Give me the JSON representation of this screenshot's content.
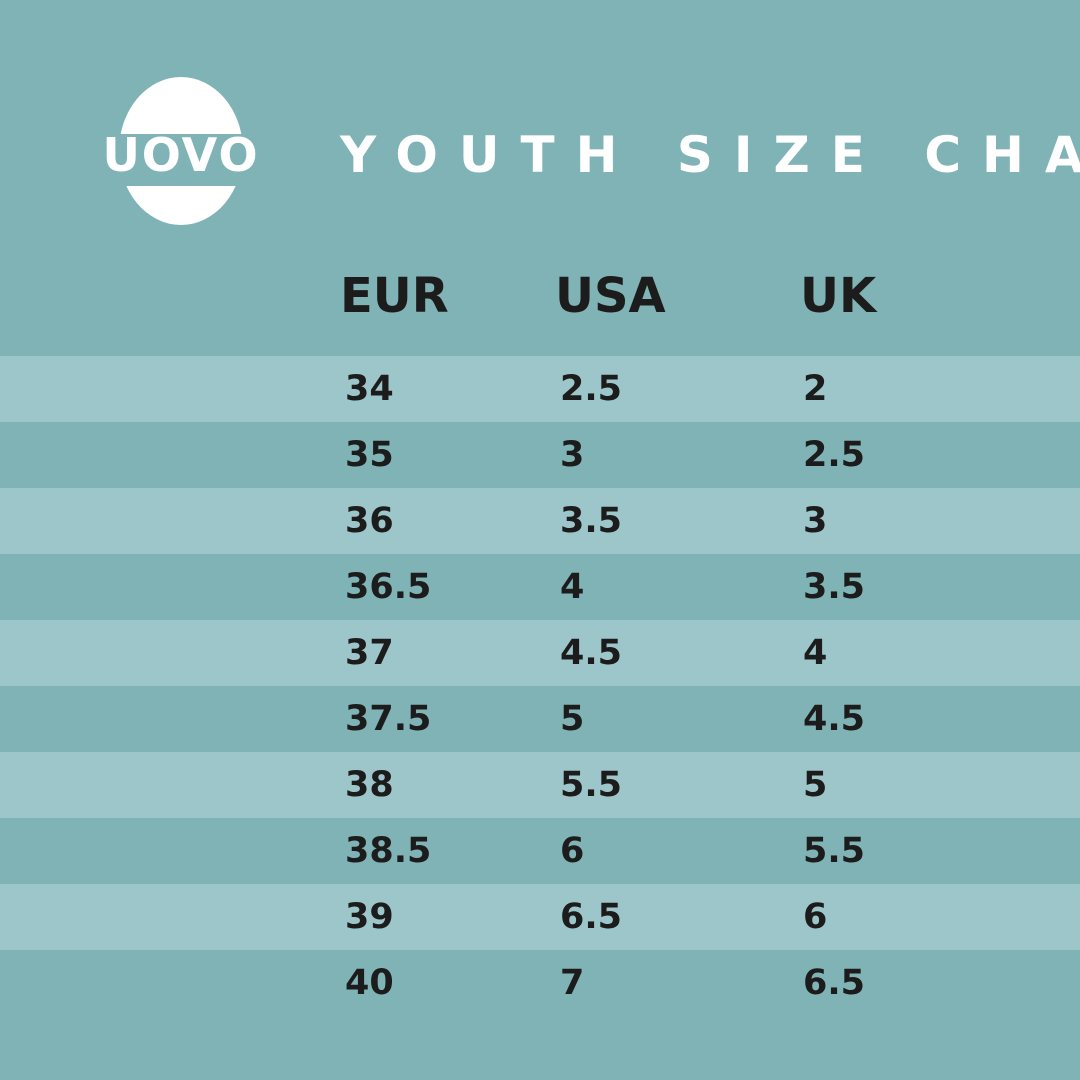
{
  "colors": {
    "background": "#7fb3b6",
    "stripe_light": "#9dc6ca",
    "stripe_dark": "#7fb3b6",
    "text_dark": "#1c1c1c",
    "text_light": "#ffffff"
  },
  "logo": {
    "text": "UOVO",
    "icon": "egg-logo-icon"
  },
  "title": "YOUTH SIZE CHART",
  "columns": {
    "eur": "EUR",
    "usa": "USA",
    "uk": "UK"
  },
  "rows": [
    {
      "eur": "34",
      "usa": "2.5",
      "uk": "2"
    },
    {
      "eur": "35",
      "usa": "3",
      "uk": "2.5"
    },
    {
      "eur": "36",
      "usa": "3.5",
      "uk": "3"
    },
    {
      "eur": "36.5",
      "usa": "4",
      "uk": "3.5"
    },
    {
      "eur": "37",
      "usa": "4.5",
      "uk": "4"
    },
    {
      "eur": "37.5",
      "usa": "5",
      "uk": "4.5"
    },
    {
      "eur": "38",
      "usa": "5.5",
      "uk": "5"
    },
    {
      "eur": "38.5",
      "usa": "6",
      "uk": "5.5"
    },
    {
      "eur": "39",
      "usa": "6.5",
      "uk": "6"
    },
    {
      "eur": "40",
      "usa": "7",
      "uk": "6.5"
    }
  ]
}
